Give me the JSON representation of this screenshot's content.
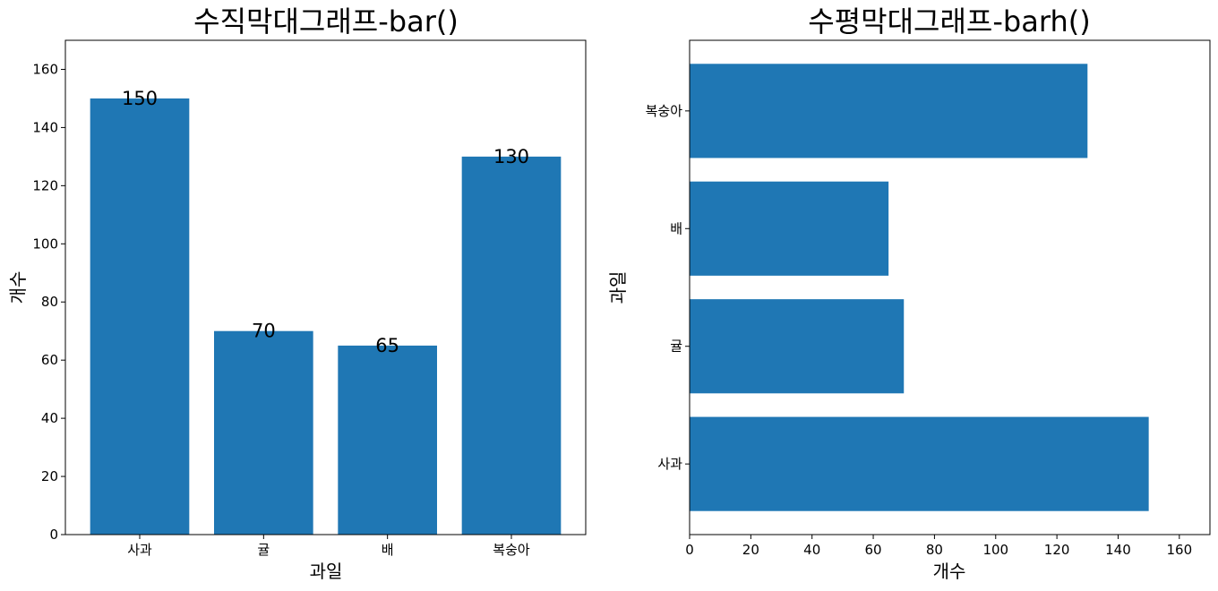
{
  "chart_data": [
    {
      "type": "bar",
      "title": "수직막대그래프-bar()",
      "xlabel": "과일",
      "ylabel": "개수",
      "categories": [
        "사과",
        "귤",
        "배",
        "복숭아"
      ],
      "values": [
        150,
        70,
        65,
        130
      ],
      "data_labels": [
        "150",
        "70",
        "65",
        "130"
      ],
      "ylim": [
        0,
        170
      ],
      "yticks": [
        0,
        20,
        40,
        60,
        80,
        100,
        120,
        140,
        160
      ],
      "color": "#1f77b4",
      "grid": false
    },
    {
      "type": "bar",
      "orientation": "horizontal",
      "title": "수평막대그래프-barh()",
      "xlabel": "개수",
      "ylabel": "과일",
      "categories": [
        "사과",
        "귤",
        "배",
        "복숭아"
      ],
      "values": [
        150,
        70,
        65,
        130
      ],
      "xlim": [
        0,
        170
      ],
      "xticks": [
        0,
        20,
        40,
        60,
        80,
        100,
        120,
        140,
        160
      ],
      "color": "#1f77b4",
      "grid": false
    }
  ]
}
